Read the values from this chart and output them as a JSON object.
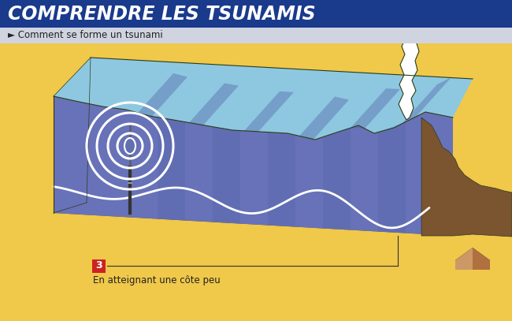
{
  "title": "COMPRENDRE LES TSUNAMIS",
  "title_bg": "#1a3a8c",
  "title_color": "#ffffff",
  "subtitle": "► Comment se forme un tsunami",
  "subtitle_bg": "#d0d4e0",
  "subtitle_color": "#222222",
  "bg_color": "#f0c84a",
  "label_number": "3",
  "label_text": "En atteignant une côte peu",
  "ocean_top_color": "#8ec8e0",
  "ocean_mid_color": "#6872b8",
  "ocean_dark_color": "#5060a8",
  "ocean_lighter_color": "#9ab0d8",
  "seafloor_color": "#7a5530",
  "coast_color": "#7a5530",
  "wave_color": "#ffffff",
  "circle_color": "#ffffff",
  "foam_color": "#ffffff",
  "house_body_color": "#cc9966",
  "house_roof_color": "#222222",
  "outline_color": "#2a3a18"
}
